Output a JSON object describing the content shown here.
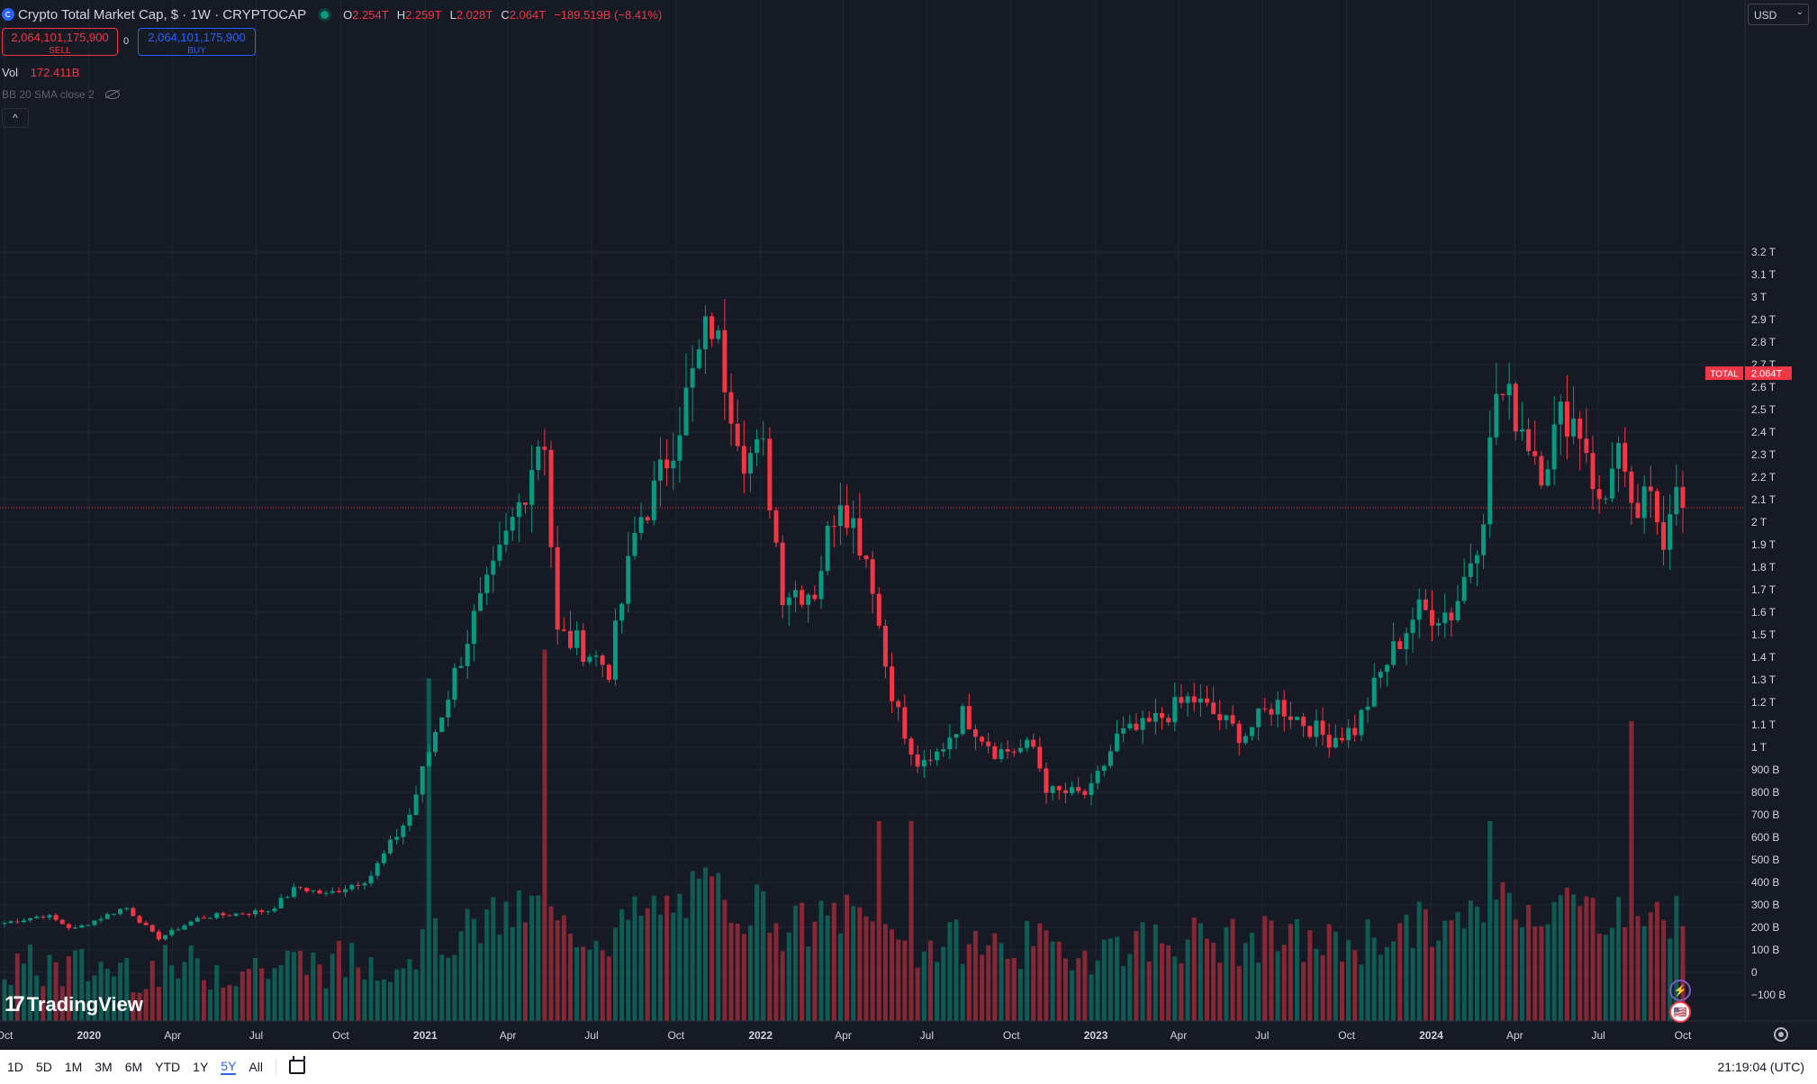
{
  "header": {
    "title": "Crypto Total Market Cap, $ · 1W · CRYPTOCAP",
    "ohlc": [
      {
        "k": "O",
        "v": "2.254T"
      },
      {
        "k": "H",
        "v": "2.259T"
      },
      {
        "k": "L",
        "v": "2.028T"
      },
      {
        "k": "C",
        "v": "2.064T"
      }
    ],
    "change": "−189.519B (−8.41%)"
  },
  "trade": {
    "sell_price": "2,064,101,175,900",
    "sell_label": "SELL",
    "spread": "0",
    "buy_price": "2,064,101,175,900",
    "buy_label": "BUY"
  },
  "volume": {
    "label": "Vol",
    "value": "172.411B"
  },
  "indicator": {
    "label": "BB 20 SMA close 2"
  },
  "collapse_glyph": "^",
  "currency": "USD",
  "chevron_glyph": "⌄",
  "price_tag": {
    "symbol": "TOTAL",
    "value": "2.064T"
  },
  "brand": {
    "mark": "17",
    "name": "TradingView"
  },
  "event_glyphs": [
    "⚡",
    "🇺🇸"
  ],
  "bottom": {
    "ranges": [
      "1D",
      "5D",
      "1M",
      "3M",
      "6M",
      "YTD",
      "1Y",
      "5Y",
      "All"
    ],
    "active_range": "5Y",
    "time": "21:19:04 (UTC)"
  },
  "colors": {
    "up": "#089981",
    "down": "#f23645",
    "background": "#161a25",
    "grid": "#232733",
    "last_price_line": "#f23645"
  },
  "chart_data": {
    "type": "candlestick",
    "title": "Crypto Total Market Cap, $ · 1W · CRYPTOCAP",
    "y_unit": "USD",
    "ylim": [
      -100,
      3200
    ],
    "y_ticks_billions": [
      -100,
      0,
      100,
      200,
      300,
      400,
      500,
      600,
      700,
      800,
      900,
      1000,
      1100,
      1200,
      1300,
      1400,
      1500,
      1600,
      1700,
      1800,
      1900,
      2000,
      2100,
      2200,
      2300,
      2400,
      2500,
      2600,
      2700,
      2800,
      2900,
      3000,
      3100,
      3200
    ],
    "y_tick_labels": [
      "−100 B",
      "0",
      "100 B",
      "200 B",
      "300 B",
      "400 B",
      "500 B",
      "600 B",
      "700 B",
      "800 B",
      "900 B",
      "1 T",
      "1.1 T",
      "1.2 T",
      "1.3 T",
      "1.4 T",
      "1.5 T",
      "1.6 T",
      "1.7 T",
      "1.8 T",
      "1.9 T",
      "2 T",
      "2.1 T",
      "2.2 T",
      "2.3 T",
      "2.4 T",
      "2.5 T",
      "2.6 T",
      "2.7 T",
      "2.8 T",
      "2.9 T",
      "3 T",
      "3.1 T",
      "3.2 T"
    ],
    "x_tick_labels": [
      "Oct",
      "2020",
      "Apr",
      "Jul",
      "Oct",
      "2021",
      "Apr",
      "Jul",
      "Oct",
      "2022",
      "Apr",
      "Jul",
      "Oct",
      "2023",
      "Apr",
      "Jul",
      "Oct",
      "2024",
      "Apr",
      "Jul",
      "Oct"
    ],
    "x_tick_dates": [
      "2019-10-01",
      "2020-01-01",
      "2020-04-01",
      "2020-07-01",
      "2020-10-01",
      "2021-01-01",
      "2021-04-01",
      "2021-07-01",
      "2021-10-01",
      "2022-01-01",
      "2022-04-01",
      "2022-07-01",
      "2022-10-01",
      "2023-01-01",
      "2023-04-01",
      "2023-07-01",
      "2023-10-01",
      "2024-01-01",
      "2024-04-01",
      "2024-07-01",
      "2024-10-01"
    ],
    "last_value": 2064,
    "price_anchors": [
      {
        "date": "2019-10-01",
        "value": 220
      },
      {
        "date": "2019-11-15",
        "value": 255
      },
      {
        "date": "2019-12-15",
        "value": 190
      },
      {
        "date": "2020-02-10",
        "value": 290
      },
      {
        "date": "2020-03-16",
        "value": 150
      },
      {
        "date": "2020-05-01",
        "value": 245
      },
      {
        "date": "2020-07-15",
        "value": 275
      },
      {
        "date": "2020-08-15",
        "value": 380
      },
      {
        "date": "2020-09-15",
        "value": 345
      },
      {
        "date": "2020-11-01",
        "value": 420
      },
      {
        "date": "2020-12-15",
        "value": 700
      },
      {
        "date": "2021-01-10",
        "value": 1050
      },
      {
        "date": "2021-02-21",
        "value": 1550
      },
      {
        "date": "2021-03-15",
        "value": 1750
      },
      {
        "date": "2021-04-15",
        "value": 2100
      },
      {
        "date": "2021-05-10",
        "value": 2450
      },
      {
        "date": "2021-05-24",
        "value": 1500
      },
      {
        "date": "2021-06-20",
        "value": 1450
      },
      {
        "date": "2021-07-20",
        "value": 1350
      },
      {
        "date": "2021-08-20",
        "value": 2000
      },
      {
        "date": "2021-09-10",
        "value": 2150
      },
      {
        "date": "2021-10-20",
        "value": 2650
      },
      {
        "date": "2021-11-08",
        "value": 2900
      },
      {
        "date": "2021-12-15",
        "value": 2300
      },
      {
        "date": "2022-01-05",
        "value": 2300
      },
      {
        "date": "2022-01-25",
        "value": 1700
      },
      {
        "date": "2022-03-01",
        "value": 1700
      },
      {
        "date": "2022-03-28",
        "value": 2150
      },
      {
        "date": "2022-05-01",
        "value": 1800
      },
      {
        "date": "2022-05-15",
        "value": 1400
      },
      {
        "date": "2022-06-13",
        "value": 950
      },
      {
        "date": "2022-07-01",
        "value": 900
      },
      {
        "date": "2022-08-10",
        "value": 1150
      },
      {
        "date": "2022-09-15",
        "value": 980
      },
      {
        "date": "2022-10-25",
        "value": 1000
      },
      {
        "date": "2022-11-10",
        "value": 800
      },
      {
        "date": "2022-12-25",
        "value": 790
      },
      {
        "date": "2023-01-25",
        "value": 1050
      },
      {
        "date": "2023-02-20",
        "value": 1080
      },
      {
        "date": "2023-04-15",
        "value": 1220
      },
      {
        "date": "2023-06-10",
        "value": 1050
      },
      {
        "date": "2023-07-15",
        "value": 1200
      },
      {
        "date": "2023-09-10",
        "value": 1040
      },
      {
        "date": "2023-10-10",
        "value": 1080
      },
      {
        "date": "2023-11-10",
        "value": 1350
      },
      {
        "date": "2023-12-15",
        "value": 1600
      },
      {
        "date": "2024-01-25",
        "value": 1600
      },
      {
        "date": "2024-02-25",
        "value": 2000
      },
      {
        "date": "2024-03-12",
        "value": 2580
      },
      {
        "date": "2024-04-01",
        "value": 2500
      },
      {
        "date": "2024-05-01",
        "value": 2250
      },
      {
        "date": "2024-05-25",
        "value": 2500
      },
      {
        "date": "2024-06-15",
        "value": 2400
      },
      {
        "date": "2024-07-05",
        "value": 2000
      },
      {
        "date": "2024-07-20",
        "value": 2400
      },
      {
        "date": "2024-08-05",
        "value": 2000
      },
      {
        "date": "2024-08-25",
        "value": 2100
      },
      {
        "date": "2024-09-10",
        "value": 1950
      },
      {
        "date": "2024-09-25",
        "value": 2250
      },
      {
        "date": "2024-10-01",
        "value": 2064
      }
    ],
    "volume_range": [
      10,
      300
    ],
    "volume_peaks": [
      {
        "date": "2021-01-04",
        "value": 250
      },
      {
        "date": "2021-05-10",
        "value": 270
      },
      {
        "date": "2022-05-09",
        "value": 150
      },
      {
        "date": "2022-06-13",
        "value": 150
      },
      {
        "date": "2024-03-04",
        "value": 150
      },
      {
        "date": "2024-08-05",
        "value": 220
      }
    ]
  }
}
